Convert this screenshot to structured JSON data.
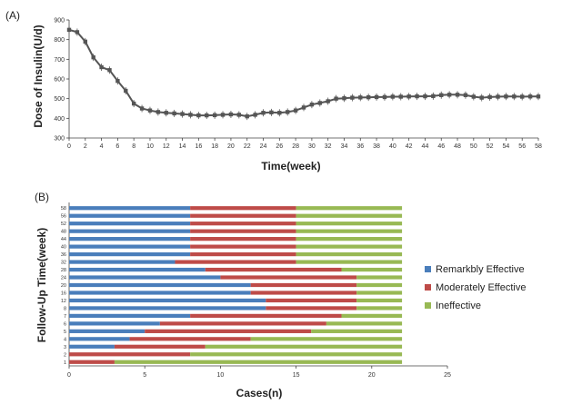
{
  "chart_data": [
    {
      "panel_label": "(A)",
      "type": "line",
      "xlabel": "Time(week)",
      "ylabel": "Dose of Insulin(U/d)",
      "xlim": [
        0,
        58
      ],
      "ylim": [
        300,
        900
      ],
      "xticks": [
        0,
        2,
        4,
        6,
        8,
        10,
        12,
        14,
        16,
        18,
        20,
        22,
        24,
        26,
        28,
        30,
        32,
        34,
        36,
        38,
        40,
        42,
        44,
        46,
        48,
        50,
        52,
        54,
        56,
        58
      ],
      "yticks": [
        300,
        400,
        500,
        600,
        700,
        800,
        900
      ],
      "color": "#555555",
      "series": [
        {
          "x": [
            0,
            1,
            2,
            3,
            4,
            5,
            6,
            7,
            8,
            9,
            10,
            11,
            12,
            13,
            14,
            15,
            16,
            17,
            18,
            19,
            20,
            21,
            22,
            23,
            24,
            25,
            26,
            27,
            28,
            29,
            30,
            31,
            32,
            33,
            34,
            35,
            36,
            37,
            38,
            39,
            40,
            41,
            42,
            43,
            44,
            45,
            46,
            47,
            48,
            49,
            50,
            51,
            52,
            53,
            54,
            55,
            56,
            57,
            58
          ],
          "values": [
            850,
            838,
            790,
            710,
            660,
            645,
            590,
            540,
            475,
            450,
            440,
            432,
            428,
            425,
            422,
            418,
            415,
            415,
            416,
            418,
            420,
            418,
            410,
            418,
            428,
            430,
            428,
            432,
            440,
            455,
            470,
            478,
            487,
            500,
            502,
            505,
            506,
            507,
            508,
            508,
            510,
            510,
            511,
            512,
            512,
            513,
            518,
            520,
            520,
            518,
            510,
            505,
            508,
            510,
            511,
            511,
            510,
            511,
            511
          ]
        }
      ]
    },
    {
      "panel_label": "(B)",
      "type": "bar",
      "orientation": "horizontal",
      "stacked": true,
      "xlabel": "Cases(n)",
      "ylabel": "Follow-Up Time(week)",
      "xlim": [
        0,
        25
      ],
      "xticks": [
        0,
        5,
        10,
        15,
        20,
        25
      ],
      "categories": [
        "1",
        "2",
        "3",
        "4",
        "5",
        "6",
        "7",
        "8",
        "12",
        "16",
        "20",
        "24",
        "28",
        "32",
        "36",
        "40",
        "44",
        "48",
        "52",
        "56",
        "58"
      ],
      "legend_position": "right",
      "series": [
        {
          "name": "Remarkbly Effective",
          "color": "#4a7ebb",
          "values": [
            0,
            0,
            3,
            4,
            5,
            6,
            8,
            13,
            13,
            12,
            12,
            10,
            9,
            7,
            8,
            8,
            8,
            8,
            8,
            8,
            8
          ]
        },
        {
          "name": "Moderately Effective",
          "color": "#be4b48",
          "values": [
            3,
            8,
            6,
            8,
            11,
            11,
            10,
            6,
            6,
            7,
            7,
            9,
            9,
            8,
            7,
            7,
            7,
            7,
            7,
            7,
            7
          ]
        },
        {
          "name": "Ineffective",
          "color": "#98b954",
          "values": [
            19,
            14,
            13,
            10,
            6,
            5,
            4,
            3,
            3,
            3,
            3,
            3,
            4,
            7,
            7,
            7,
            7,
            7,
            7,
            7,
            7
          ]
        }
      ]
    }
  ]
}
